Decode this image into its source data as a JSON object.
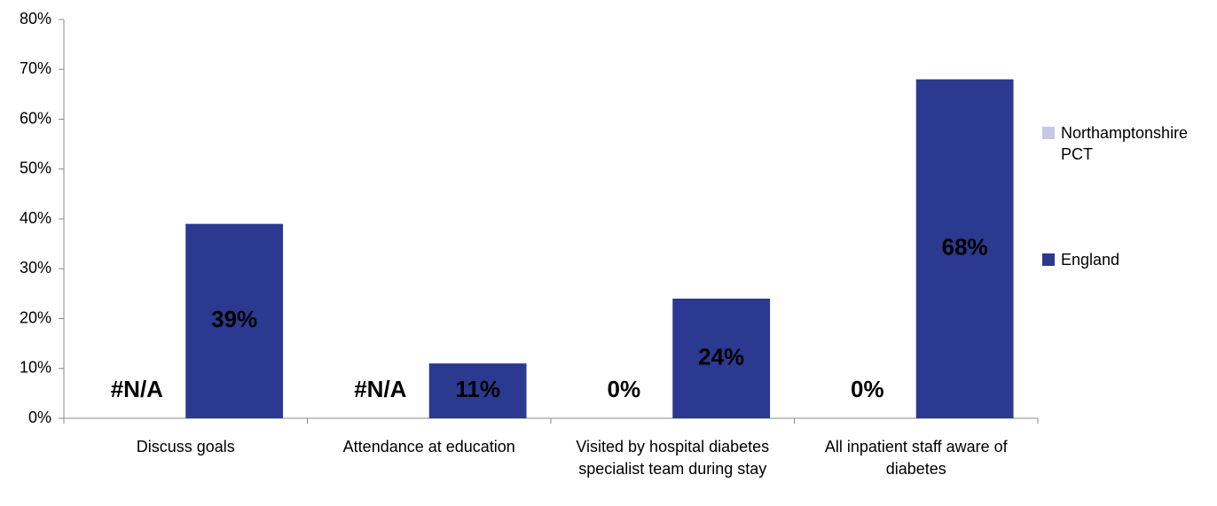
{
  "chart_data": {
    "type": "bar",
    "categories": [
      "Discuss goals",
      "Attendance at education",
      "Visited by hospital diabetes specialist team during stay",
      "All inpatient staff aware of diabetes"
    ],
    "series": [
      {
        "name": "Northamptonshire PCT",
        "color": "#c5c9e3",
        "values": [
          null,
          null,
          0,
          0
        ],
        "value_labels": [
          "#N/A",
          "#N/A",
          "0%",
          "0%"
        ]
      },
      {
        "name": "England",
        "color": "#2b3990",
        "values": [
          39,
          11,
          24,
          68
        ],
        "value_labels": [
          "39%",
          "11%",
          "24%",
          "68%"
        ]
      }
    ],
    "ylim": [
      0,
      80
    ],
    "yticks": [
      {
        "value": 0,
        "label": "0%"
      },
      {
        "value": 10,
        "label": "10%"
      },
      {
        "value": 20,
        "label": "20%"
      },
      {
        "value": 30,
        "label": "30%"
      },
      {
        "value": 40,
        "label": "40%"
      },
      {
        "value": 50,
        "label": "50%"
      },
      {
        "value": 60,
        "label": "60%"
      },
      {
        "value": 70,
        "label": "70%"
      },
      {
        "value": 80,
        "label": "80%"
      }
    ],
    "legend": "right"
  }
}
